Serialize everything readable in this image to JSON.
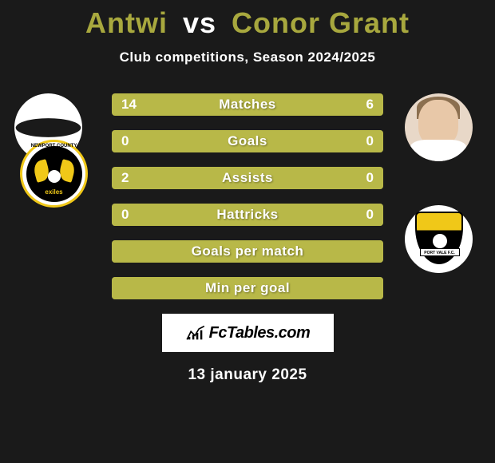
{
  "title": {
    "player1": "Antwi",
    "vs": "vs",
    "player2": "Conor Grant"
  },
  "subtitle": "Club competitions, Season 2024/2025",
  "stats": [
    {
      "label": "Matches",
      "left_val": "14",
      "right_val": "6",
      "left_pct": 70,
      "right_pct": 30,
      "show_vals": true
    },
    {
      "label": "Goals",
      "left_val": "0",
      "right_val": "0",
      "left_pct": 0,
      "right_pct": 0,
      "show_vals": true,
      "full_bg": true
    },
    {
      "label": "Assists",
      "left_val": "2",
      "right_val": "0",
      "left_pct": 100,
      "right_pct": 0,
      "show_vals": true
    },
    {
      "label": "Hattricks",
      "left_val": "0",
      "right_val": "0",
      "left_pct": 0,
      "right_pct": 0,
      "show_vals": true,
      "full_bg": true
    },
    {
      "label": "Goals per match",
      "left_val": "",
      "right_val": "",
      "left_pct": 0,
      "right_pct": 0,
      "show_vals": false,
      "full_bg": true
    },
    {
      "label": "Min per goal",
      "left_val": "",
      "right_val": "",
      "left_pct": 0,
      "right_pct": 0,
      "show_vals": false,
      "full_bg": true
    }
  ],
  "branding": "FcTables.com",
  "date": "13 january 2025",
  "club_left": {
    "name": "Newport County",
    "banner": "exiles"
  },
  "club_right": {
    "name": "Port Vale",
    "banner": "PORT VALE F.C."
  },
  "colors": {
    "accent": "#b8b848",
    "bar_bg": "#7a7a2a",
    "title_accent": "#a8a83e",
    "bg": "#1a1a1a",
    "text": "#ffffff"
  }
}
